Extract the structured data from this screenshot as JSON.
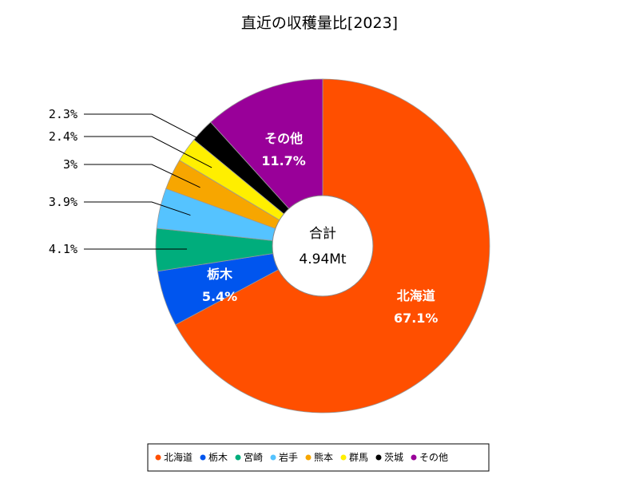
{
  "chart_data": {
    "type": "pie",
    "title": "直近の収穫量比[2023]",
    "center_label": "合計",
    "center_value": "4.94Mt",
    "slices": [
      {
        "name": "北海道",
        "value": 67.1,
        "label": "67.1%",
        "color": "#ff4f00",
        "label_mode": "inside"
      },
      {
        "name": "栃木",
        "value": 5.4,
        "label": "5.4%",
        "color": "#0055ee",
        "label_mode": "inside"
      },
      {
        "name": "宮崎",
        "value": 4.1,
        "label": "4.1%",
        "color": "#00ad7c",
        "label_mode": "outside"
      },
      {
        "name": "岩手",
        "value": 3.9,
        "label": "3.9%",
        "color": "#55c3ff",
        "label_mode": "outside"
      },
      {
        "name": "熊本",
        "value": 3.0,
        "label": "3%",
        "color": "#f7a600",
        "label_mode": "outside"
      },
      {
        "name": "群馬",
        "value": 2.4,
        "label": "2.4%",
        "color": "#ffef00",
        "label_mode": "outside"
      },
      {
        "name": "茨城",
        "value": 2.3,
        "label": "2.3%",
        "color": "#000000",
        "label_mode": "outside"
      },
      {
        "name": "その他",
        "value": 11.7,
        "label": "11.7%",
        "color": "#990099",
        "label_mode": "inside"
      }
    ],
    "legend_position": "bottom"
  }
}
